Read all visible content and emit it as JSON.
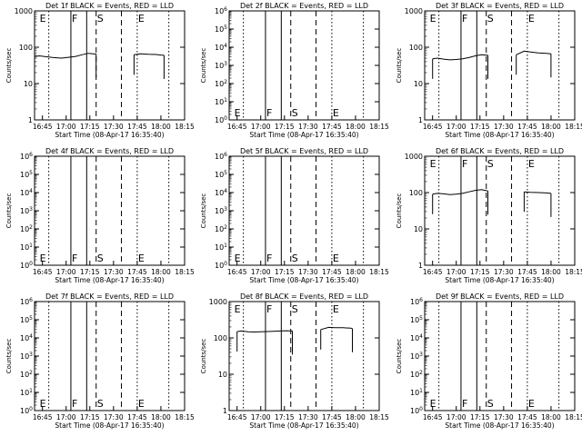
{
  "figure": {
    "xtick_labels": [
      "16:45",
      "17:00",
      "17:15",
      "17:30",
      "17:45",
      "18:00",
      "18:15"
    ],
    "xlabel": "Start Time (08-Apr-17 16:35:40)",
    "ylabel": "Counts/sec",
    "marker_labels": [
      "E",
      "F",
      "S",
      "E"
    ]
  },
  "chart_data": [
    {
      "type": "line",
      "title": "Det 1f BLACK = Events, RED = LLD",
      "scale": "log",
      "ylim": [
        1,
        1000
      ],
      "ytick_labels": [
        "1",
        "10",
        "100",
        "1000"
      ],
      "xlim": [
        "16:40",
        "18:15"
      ],
      "grid": false,
      "has_data": true,
      "segments": [
        {
          "x": [
            "16:40",
            "16:43",
            "16:47",
            "16:52",
            "16:57",
            "17:02",
            "17:06",
            "17:10",
            "17:14",
            "17:19"
          ],
          "y": [
            55,
            58,
            55,
            52,
            50,
            53,
            56,
            62,
            68,
            65
          ]
        },
        {
          "x": [
            "17:43",
            "17:47",
            "17:52",
            "17:57",
            "18:00",
            "18:02"
          ],
          "y": [
            62,
            66,
            64,
            63,
            61,
            60
          ]
        }
      ]
    },
    {
      "type": "line",
      "title": "Det 2f BLACK = Events, RED = LLD",
      "scale": "log",
      "ylim": [
        1,
        1000000
      ],
      "ytick_labels": [
        "10^0",
        "10^1",
        "10^2",
        "10^3",
        "10^4",
        "10^5",
        "10^6"
      ],
      "xlim": [
        "16:40",
        "18:15"
      ],
      "grid": false,
      "has_data": false,
      "segments": []
    },
    {
      "type": "line",
      "title": "Det 3f BLACK = Events, RED = LLD",
      "scale": "log",
      "ylim": [
        1,
        1000
      ],
      "ytick_labels": [
        "1",
        "10",
        "100",
        "1000"
      ],
      "xlim": [
        "16:40",
        "18:15"
      ],
      "grid": false,
      "has_data": true,
      "segments": [
        {
          "x": [
            "16:45",
            "16:48",
            "16:52",
            "16:56",
            "17:00",
            "17:04",
            "17:08",
            "17:12",
            "17:16",
            "17:20"
          ],
          "y": [
            48,
            50,
            47,
            45,
            46,
            48,
            52,
            58,
            62,
            60
          ]
        },
        {
          "x": [
            "17:38",
            "17:43",
            "17:47",
            "17:52",
            "17:57",
            "18:00"
          ],
          "y": [
            62,
            78,
            74,
            70,
            68,
            66
          ]
        }
      ]
    },
    {
      "type": "line",
      "title": "Det 4f BLACK = Events, RED = LLD",
      "scale": "log",
      "ylim": [
        1,
        1000000
      ],
      "ytick_labels": [
        "10^0",
        "10^1",
        "10^2",
        "10^3",
        "10^4",
        "10^5",
        "10^6"
      ],
      "xlim": [
        "16:40",
        "18:15"
      ],
      "grid": false,
      "has_data": false,
      "segments": []
    },
    {
      "type": "line",
      "title": "Det 5f BLACK = Events, RED = LLD",
      "scale": "log",
      "ylim": [
        1,
        1000000
      ],
      "ytick_labels": [
        "10^0",
        "10^1",
        "10^2",
        "10^3",
        "10^4",
        "10^5",
        "10^6"
      ],
      "xlim": [
        "16:40",
        "18:15"
      ],
      "grid": false,
      "has_data": false,
      "segments": []
    },
    {
      "type": "line",
      "title": "Det 6f BLACK = Events, RED = LLD",
      "scale": "log",
      "ylim": [
        1,
        1000
      ],
      "ytick_labels": [
        "1",
        "10",
        "100",
        "1000"
      ],
      "xlim": [
        "16:40",
        "18:15"
      ],
      "grid": false,
      "has_data": true,
      "segments": [
        {
          "x": [
            "16:45",
            "16:48",
            "16:52",
            "16:56",
            "17:00",
            "17:04",
            "17:08",
            "17:12",
            "17:16",
            "17:20"
          ],
          "y": [
            90,
            95,
            92,
            88,
            90,
            95,
            105,
            115,
            120,
            110
          ]
        },
        {
          "x": [
            "17:43",
            "17:47",
            "17:52",
            "17:57",
            "18:00"
          ],
          "y": [
            105,
            102,
            100,
            98,
            95
          ]
        }
      ]
    },
    {
      "type": "line",
      "title": "Det 7f BLACK = Events, RED = LLD",
      "scale": "log",
      "ylim": [
        1,
        1000000
      ],
      "ytick_labels": [
        "10^0",
        "10^1",
        "10^2",
        "10^3",
        "10^4",
        "10^5",
        "10^6"
      ],
      "xlim": [
        "16:40",
        "18:15"
      ],
      "grid": false,
      "has_data": false,
      "segments": []
    },
    {
      "type": "line",
      "title": "Det 8f BLACK = Events, RED = LLD",
      "scale": "log",
      "ylim": [
        1,
        1000
      ],
      "ytick_labels": [
        "1",
        "10",
        "100",
        "1000"
      ],
      "xlim": [
        "16:40",
        "18:15"
      ],
      "grid": false,
      "has_data": true,
      "segments": [
        {
          "x": [
            "16:45",
            "16:48",
            "16:52",
            "16:56",
            "17:00",
            "17:04",
            "17:08",
            "17:12",
            "17:16",
            "17:20"
          ],
          "y": [
            150,
            155,
            148,
            145,
            147,
            150,
            152,
            155,
            158,
            155
          ]
        },
        {
          "x": [
            "17:38",
            "17:43",
            "17:47",
            "17:52",
            "17:57",
            "17:58"
          ],
          "y": [
            170,
            195,
            192,
            190,
            185,
            180
          ]
        }
      ]
    },
    {
      "type": "line",
      "title": "Det 9f BLACK = Events, RED = LLD",
      "scale": "log",
      "ylim": [
        1,
        1000000
      ],
      "ytick_labels": [
        "10^0",
        "10^1",
        "10^2",
        "10^3",
        "10^4",
        "10^5",
        "10^6"
      ],
      "xlim": [
        "16:40",
        "18:15"
      ],
      "grid": false,
      "has_data": false,
      "segments": []
    }
  ]
}
